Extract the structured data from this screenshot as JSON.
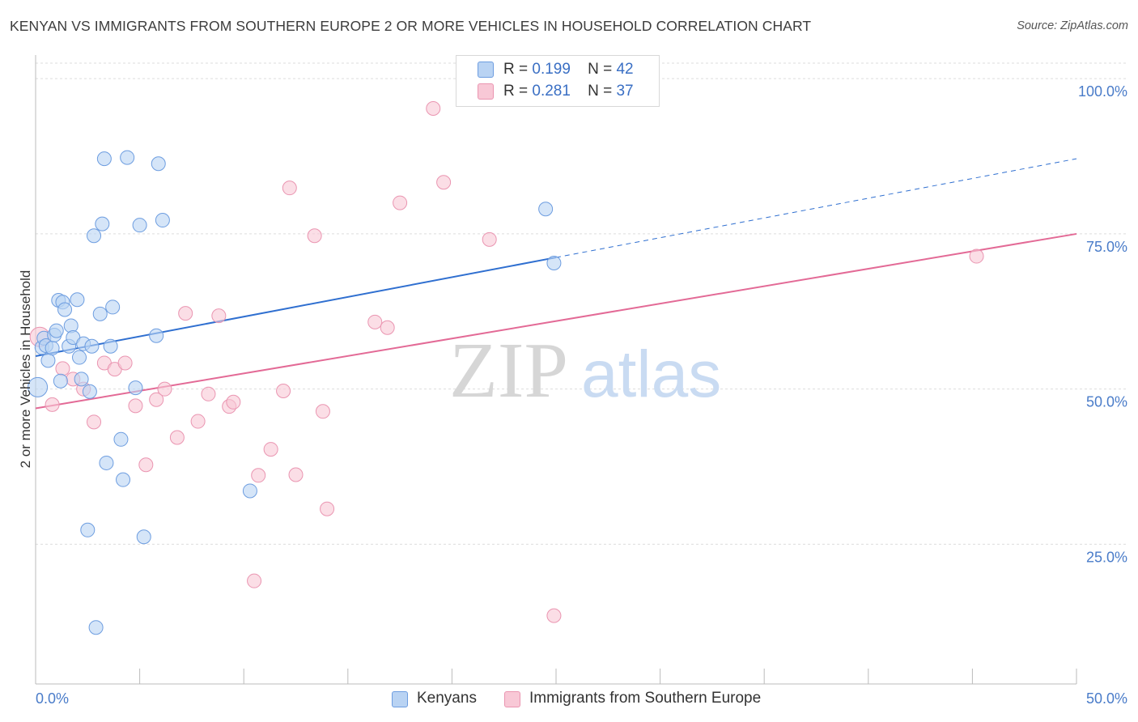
{
  "title": "KENYAN VS IMMIGRANTS FROM SOUTHERN EUROPE 2 OR MORE VEHICLES IN HOUSEHOLD CORRELATION CHART",
  "source": "Source: ZipAtlas.com",
  "watermark": {
    "zip": "ZIP",
    "atlas": "atlas"
  },
  "colors": {
    "blue_fill": "#b9d3f3",
    "blue_stroke": "#6d9de0",
    "blue_line": "#2f6fd0",
    "pink_fill": "#f8c8d6",
    "pink_stroke": "#ea95b1",
    "pink_line": "#e36a96",
    "tick_text": "#4a7cc9",
    "grid": "#dddddd"
  },
  "legend": {
    "r_label": "R =",
    "n_label": "N =",
    "series": [
      {
        "r": "0.199",
        "n": "42"
      },
      {
        "r": "0.281",
        "n": "37"
      }
    ]
  },
  "chart_data": {
    "type": "scatter",
    "title": "KENYAN VS IMMIGRANTS FROM SOUTHERN EUROPE 2 OR MORE VEHICLES IN HOUSEHOLD CORRELATION CHART",
    "xlabel": "",
    "ylabel": "2 or more Vehicles in Household",
    "xlim": [
      0,
      50
    ],
    "ylim": [
      2.5,
      102.5
    ],
    "x_tick_labels": [
      "0.0%",
      "50.0%"
    ],
    "y_ticks": [
      25,
      50,
      75,
      100
    ],
    "y_tick_labels": [
      "25.0%",
      "50.0%",
      "75.0%",
      "100.0%"
    ],
    "grid": true,
    "series": [
      {
        "name": "Kenyans",
        "points": [
          [
            0.1,
            50.3
          ],
          [
            0.3,
            56.7
          ],
          [
            0.4,
            58.2
          ],
          [
            0.5,
            57.0
          ],
          [
            0.6,
            54.6
          ],
          [
            0.8,
            56.6
          ],
          [
            0.9,
            58.7
          ],
          [
            1.0,
            59.4
          ],
          [
            1.1,
            64.3
          ],
          [
            1.2,
            51.3
          ],
          [
            1.3,
            64.0
          ],
          [
            1.4,
            62.8
          ],
          [
            1.6,
            56.9
          ],
          [
            1.7,
            60.2
          ],
          [
            1.8,
            58.3
          ],
          [
            2.0,
            64.4
          ],
          [
            2.1,
            55.1
          ],
          [
            2.2,
            51.6
          ],
          [
            2.3,
            57.3
          ],
          [
            2.5,
            27.3
          ],
          [
            2.6,
            49.6
          ],
          [
            2.7,
            56.9
          ],
          [
            2.8,
            74.7
          ],
          [
            2.9,
            11.6
          ],
          [
            3.1,
            62.1
          ],
          [
            3.2,
            76.6
          ],
          [
            3.3,
            87.1
          ],
          [
            3.4,
            38.1
          ],
          [
            3.6,
            56.9
          ],
          [
            3.7,
            63.2
          ],
          [
            4.1,
            41.9
          ],
          [
            4.2,
            35.4
          ],
          [
            4.4,
            87.3
          ],
          [
            4.8,
            50.2
          ],
          [
            5.0,
            76.4
          ],
          [
            5.2,
            26.2
          ],
          [
            5.8,
            58.6
          ],
          [
            5.9,
            86.3
          ],
          [
            6.1,
            77.2
          ],
          [
            10.3,
            33.6
          ],
          [
            24.5,
            79.0
          ],
          [
            24.9,
            70.3
          ]
        ],
        "trend": {
          "x0": 0,
          "y0": 55.3,
          "x1": 25,
          "y1": 71.2,
          "dashed_to_x": 50,
          "dashed_to_y": 87.1
        }
      },
      {
        "name": "Immigrants from Southern Europe",
        "points": [
          [
            0.2,
            58.4
          ],
          [
            0.8,
            47.5
          ],
          [
            1.3,
            53.3
          ],
          [
            1.8,
            51.6
          ],
          [
            2.3,
            50.0
          ],
          [
            2.8,
            44.7
          ],
          [
            3.3,
            54.2
          ],
          [
            3.8,
            53.2
          ],
          [
            4.3,
            54.2
          ],
          [
            4.8,
            47.3
          ],
          [
            5.3,
            37.8
          ],
          [
            5.8,
            48.3
          ],
          [
            6.2,
            50.0
          ],
          [
            6.8,
            42.2
          ],
          [
            7.2,
            62.2
          ],
          [
            7.8,
            44.8
          ],
          [
            8.3,
            49.2
          ],
          [
            8.8,
            61.8
          ],
          [
            9.3,
            47.2
          ],
          [
            9.5,
            47.9
          ],
          [
            10.5,
            19.1
          ],
          [
            10.7,
            36.1
          ],
          [
            11.3,
            40.3
          ],
          [
            12.2,
            82.4
          ],
          [
            11.9,
            49.7
          ],
          [
            12.5,
            36.2
          ],
          [
            13.4,
            74.7
          ],
          [
            13.8,
            46.4
          ],
          [
            14.0,
            30.7
          ],
          [
            16.3,
            60.8
          ],
          [
            16.9,
            59.9
          ],
          [
            17.5,
            80.0
          ],
          [
            19.1,
            95.2
          ],
          [
            19.6,
            83.3
          ],
          [
            21.8,
            74.1
          ],
          [
            24.9,
            13.5
          ],
          [
            45.2,
            71.4
          ]
        ],
        "trend": {
          "x0": 0,
          "y0": 46.9,
          "x1": 50,
          "y1": 75.0
        }
      }
    ]
  },
  "bottom_legend": [
    {
      "label": "Kenyans"
    },
    {
      "label": "Immigrants from Southern Europe"
    }
  ]
}
